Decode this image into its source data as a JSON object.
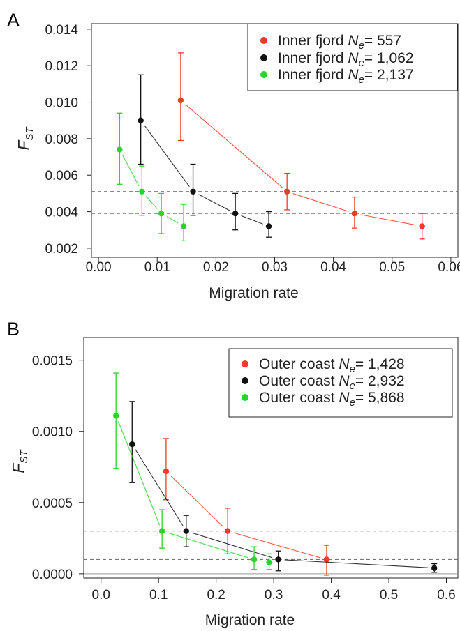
{
  "colors": {
    "red": "#f03a28",
    "black": "#111111",
    "green": "#2fd12f",
    "ref_line": "#777777"
  },
  "chart_data": [
    {
      "type": "scatter",
      "panel_label": "A",
      "xlabel": "Migration rate",
      "ylabel": "F",
      "ylabel_sub": "ST",
      "xlim": [
        -0.0012,
        0.0612
      ],
      "ylim": [
        0.0015,
        0.0143
      ],
      "xticks": [
        0.0,
        0.01,
        0.02,
        0.03,
        0.04,
        0.05,
        0.06
      ],
      "xtick_labels": [
        "0.00",
        "0.01",
        "0.02",
        "0.03",
        "0.04",
        "0.05",
        "0.06"
      ],
      "yticks": [
        0.002,
        0.004,
        0.006,
        0.008,
        0.01,
        0.012,
        0.014
      ],
      "ytick_labels": [
        "0.002",
        "0.004",
        "0.006",
        "0.008",
        "0.010",
        "0.012",
        "0.014"
      ],
      "hlines": [
        0.0051,
        0.0039
      ],
      "legend": "top-right",
      "series": [
        {
          "name": "Inner fjord ",
          "sym": "N",
          "sub": "e",
          "value": "= 557",
          "color": "red",
          "x": [
            0.014,
            0.0321,
            0.0436,
            0.0551
          ],
          "y": [
            0.0101,
            0.0051,
            0.0039,
            0.0032
          ],
          "lo": [
            0.0079,
            0.0041,
            0.0031,
            0.0025
          ],
          "hi": [
            0.0127,
            0.0061,
            0.0048,
            0.0039
          ]
        },
        {
          "name": "Inner fjord ",
          "sym": "N",
          "sub": "e",
          "value": "= 1,062",
          "color": "black",
          "x": [
            0.0072,
            0.0161,
            0.0233,
            0.029
          ],
          "y": [
            0.009,
            0.0051,
            0.0039,
            0.0032
          ],
          "lo": [
            0.0066,
            0.0038,
            0.003,
            0.0026
          ],
          "hi": [
            0.0115,
            0.0066,
            0.005,
            0.004
          ]
        },
        {
          "name": "Inner fjord ",
          "sym": "N",
          "sub": "e",
          "value": "= 2,137",
          "color": "green",
          "x": [
            0.0036,
            0.0074,
            0.0107,
            0.0145
          ],
          "y": [
            0.0074,
            0.0051,
            0.0039,
            0.0032
          ],
          "lo": [
            0.0055,
            0.0038,
            0.0028,
            0.0024
          ],
          "hi": [
            0.0094,
            0.0065,
            0.005,
            0.0044
          ]
        }
      ]
    },
    {
      "type": "scatter",
      "panel_label": "B",
      "xlabel": "Migration rate",
      "ylabel": "F",
      "ylabel_sub": "ST",
      "xlim": [
        -0.03,
        0.62
      ],
      "ylim": [
        -3e-05,
        0.00166
      ],
      "xticks": [
        0.0,
        0.1,
        0.2,
        0.3,
        0.4,
        0.5,
        0.6
      ],
      "xtick_labels": [
        "0.0",
        "0.1",
        "0.2",
        "0.3",
        "0.4",
        "0.5",
        "0.6"
      ],
      "yticks": [
        0.0,
        0.0005,
        0.001,
        0.0015
      ],
      "ytick_labels": [
        "0.0000",
        "0.0005",
        "0.0010",
        "0.0015"
      ],
      "hlines": [
        0.0003,
        0.0001
      ],
      "legend": "top-right",
      "series": [
        {
          "name": "Outer coast ",
          "sym": "N",
          "sub": "e",
          "value": "= 1,428",
          "color": "red",
          "x": [
            0.113,
            0.22,
            0.392
          ],
          "y": [
            0.00072,
            0.0003,
            0.0001
          ],
          "lo": [
            0.00052,
            0.00014,
            -1e-05
          ],
          "hi": [
            0.00095,
            0.00046,
            0.0002
          ]
        },
        {
          "name": "Outer coast ",
          "sym": "N",
          "sub": "e",
          "value": "= 2,932",
          "color": "black",
          "x": [
            0.054,
            0.148,
            0.308,
            0.579
          ],
          "y": [
            0.00091,
            0.0003,
            0.0001,
            4e-05
          ],
          "lo": [
            0.00064,
            0.00019,
            2e-05,
            1e-05
          ],
          "hi": [
            0.00121,
            0.00041,
            0.00016,
            7e-05
          ]
        },
        {
          "name": "Outer coast ",
          "sym": "N",
          "sub": "e",
          "value": "= 5,868",
          "color": "green",
          "x": [
            0.026,
            0.106,
            0.266,
            0.292
          ],
          "y": [
            0.00111,
            0.0003,
            0.0001,
            8e-05
          ],
          "lo": [
            0.00074,
            0.00018,
            3e-05,
            3e-05
          ],
          "hi": [
            0.00141,
            0.00045,
            0.00019,
            0.00014
          ]
        }
      ]
    }
  ]
}
